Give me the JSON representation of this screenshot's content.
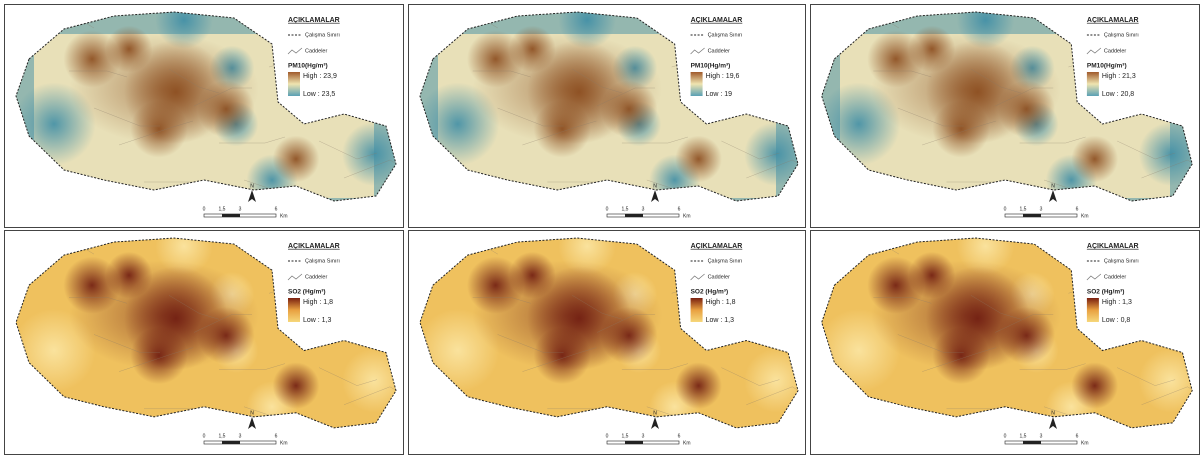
{
  "panels": [
    {
      "legend_title": "AÇIKLAMALAR",
      "boundary_label": "Çalışma Sınırı",
      "streets_label": "Caddeler",
      "pollutant": "PM10(Hg/m³)",
      "high": "High : 23,9",
      "low": "Low : 23,5",
      "north": "N",
      "scale": [
        "0",
        "1,5",
        "3",
        "6"
      ],
      "unit": "Km"
    },
    {
      "legend_title": "AÇIKLAMALAR",
      "boundary_label": "Çalışma Sınırı",
      "streets_label": "Caddeler",
      "pollutant": "PM10(Hg/m³)",
      "high": "High : 19,6",
      "low": "Low : 19",
      "north": "N",
      "scale": [
        "0",
        "1,5",
        "3",
        "6"
      ],
      "unit": "Km"
    },
    {
      "legend_title": "AÇIKLAMALAR",
      "boundary_label": "Çalışma Sınırı",
      "streets_label": "Caddeler",
      "pollutant": "PM10(Hg/m³)",
      "high": "High : 21,3",
      "low": "Low : 20,8",
      "north": "N",
      "scale": [
        "0",
        "1,5",
        "3",
        "6"
      ],
      "unit": "Km"
    },
    {
      "legend_title": "AÇIKLAMALAR",
      "boundary_label": "Çalışma Sınırı",
      "streets_label": "Caddeler",
      "pollutant": "SO2 (Hg/m³)",
      "high": "High : 1,8",
      "low": "Low : 1,3",
      "north": "N",
      "scale": [
        "0",
        "1,5",
        "3",
        "6"
      ],
      "unit": "Km"
    },
    {
      "legend_title": "AÇIKLAMALAR",
      "boundary_label": "Çalışma Sınırı",
      "streets_label": "Caddeler",
      "pollutant": "SO2 (Hg/m³)",
      "high": "High : 1,8",
      "low": "Low : 1,3",
      "north": "N",
      "scale": [
        "0",
        "1,5",
        "3",
        "6"
      ],
      "unit": "Km"
    },
    {
      "legend_title": "AÇIKLAMALAR",
      "boundary_label": "Çalışma Sınırı",
      "streets_label": "Caddeler",
      "pollutant": "SO2 (Hg/m³)",
      "high": "High : 1,3",
      "low": "Low : 0,8",
      "north": "N",
      "scale": [
        "0",
        "1,5",
        "3",
        "6"
      ],
      "unit": "Km"
    }
  ]
}
